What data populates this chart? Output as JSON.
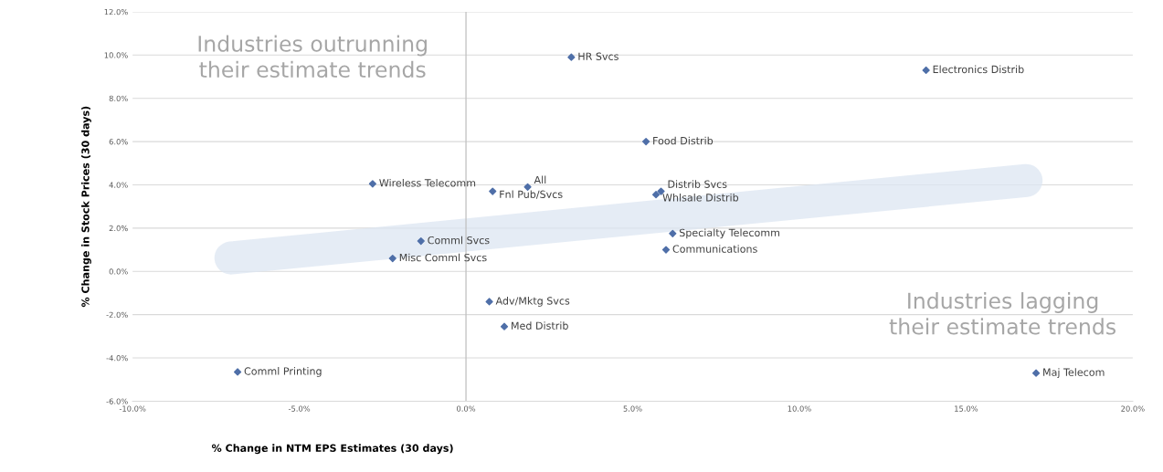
{
  "chart_data": {
    "type": "scatter",
    "xlabel": "% Change in NTM EPS Estimates (30 days)",
    "ylabel": "% Change in Stock Prices (30 days)",
    "x": [
      3.16,
      13.8,
      5.4,
      -2.8,
      0.8,
      1.85,
      5.85,
      5.7,
      6.2,
      6.0,
      -1.35,
      -2.2,
      0.7,
      1.15,
      -6.85,
      17.1
    ],
    "series": [
      {
        "color": "#4f6fa8",
        "values": [
          9.9,
          9.3,
          6.0,
          4.05,
          3.7,
          3.9,
          3.7,
          3.55,
          1.75,
          1.0,
          1.4,
          0.6,
          -1.4,
          -2.55,
          -4.65,
          -4.7
        ]
      },
      {
        "type": "line",
        "color": "#dce6f2",
        "marker": "none",
        "x": [
          -7.05,
          16.8
        ],
        "values": [
          0.62,
          4.2
        ]
      }
    ],
    "marker": "diamond",
    "xlim": [
      -10,
      20
    ],
    "ylim": [
      -6,
      12
    ],
    "xticks": [
      {
        "value": -10,
        "label": "-10.0%"
      },
      {
        "value": -5,
        "label": "-5.0%"
      },
      {
        "value": 0,
        "label": "0.0%"
      },
      {
        "value": 5,
        "label": "5.0%"
      },
      {
        "value": 10,
        "label": "10.0%"
      },
      {
        "value": 15,
        "label": "15.0%"
      },
      {
        "value": 20,
        "label": "20.0%"
      }
    ],
    "yticks": [
      {
        "value": -6,
        "label": "-6.0%"
      },
      {
        "value": -4,
        "label": "-4.0%"
      },
      {
        "value": -2,
        "label": "-2.0%"
      },
      {
        "value": 0,
        "label": "0.0%"
      },
      {
        "value": 2,
        "label": "2.0%"
      },
      {
        "value": 4,
        "label": "4.0%"
      },
      {
        "value": 6,
        "label": "6.0%"
      },
      {
        "value": 8,
        "label": "8.0%"
      },
      {
        "value": 10,
        "label": "10.0%"
      },
      {
        "value": 12,
        "label": "12.0%"
      }
    ],
    "grid": "y",
    "ref_lines": [
      {
        "axis": "x",
        "value": 0,
        "color": "#bfbfbf"
      }
    ],
    "annotations": [
      "Industries outrunning\ntheir estimate trends",
      "Industries lagging\ntheir estimate trends",
      {
        "text": "HR Svcs",
        "x": 3.16,
        "y": 9.9
      },
      {
        "text": "Electronics Distrib",
        "x": 13.8,
        "y": 9.3
      },
      {
        "text": "Food Distrib",
        "x": 5.4,
        "y": 6.0
      },
      {
        "text": "Wireless Telecomm",
        "x": -2.8,
        "y": 4.05
      },
      {
        "text": "Fnl Pub/Svcs",
        "x": 0.8,
        "y": 3.7
      },
      {
        "text": "All",
        "x": 1.85,
        "y": 3.9
      },
      {
        "text": "Distrib Svcs",
        "x": 5.85,
        "y": 3.7
      },
      {
        "text": "Whlsale Distrib",
        "x": 5.7,
        "y": 3.55
      },
      {
        "text": "Specialty Telecomm",
        "x": 6.2,
        "y": 1.75
      },
      {
        "text": "Communications",
        "x": 6.0,
        "y": 1.0
      },
      {
        "text": "Comml Svcs",
        "x": -1.35,
        "y": 1.4
      },
      {
        "text": "Misc Comml Svcs",
        "x": -2.2,
        "y": 0.6
      },
      {
        "text": "Adv/Mktg Svcs",
        "x": 0.7,
        "y": -1.4
      },
      {
        "text": "Med Distrib",
        "x": 1.15,
        "y": -2.55
      },
      {
        "text": "Comml Printing",
        "x": -6.85,
        "y": -4.65
      },
      {
        "text": "Maj Telecom",
        "x": 17.1,
        "y": -4.7
      }
    ]
  }
}
